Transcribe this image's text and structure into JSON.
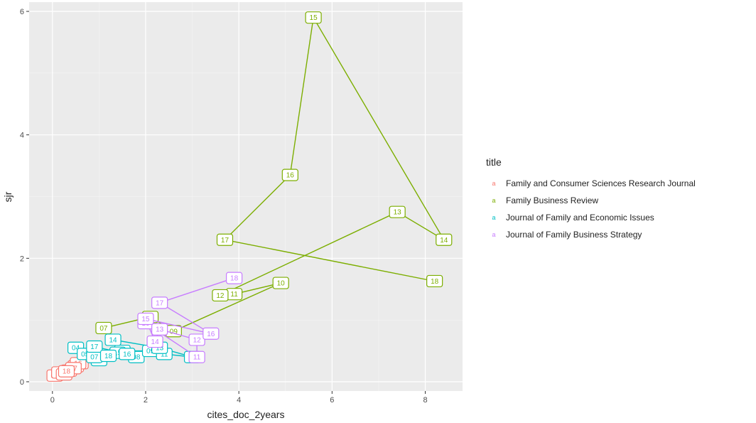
{
  "chart_data": {
    "type": "line",
    "xlabel": "cites_doc_2years",
    "ylabel": "sjr",
    "xlim": [
      -0.5,
      8.8
    ],
    "ylim": [
      -0.15,
      6.15
    ],
    "x_ticks": [
      0,
      2,
      4,
      6,
      8
    ],
    "y_ticks": [
      0,
      2,
      4,
      6
    ],
    "grid": true,
    "legend_title": "title",
    "legend_position": "right",
    "legend_key_glyph": "a",
    "series": [
      {
        "name": "Family and Consumer Sciences Research Journal",
        "color": "#F8766D",
        "points": [
          {
            "label": "09",
            "x": 0.05,
            "y": 0.1
          },
          {
            "label": "10",
            "x": 0.15,
            "y": 0.15
          },
          {
            "label": "11",
            "x": 0.25,
            "y": 0.12
          },
          {
            "label": "12",
            "x": 0.35,
            "y": 0.18
          },
          {
            "label": "13",
            "x": 0.5,
            "y": 0.25
          },
          {
            "label": "14",
            "x": 0.6,
            "y": 0.3
          },
          {
            "label": "15",
            "x": 0.45,
            "y": 0.22
          },
          {
            "label": "16",
            "x": 0.55,
            "y": 0.3
          },
          {
            "label": "17",
            "x": 0.45,
            "y": 0.22
          },
          {
            "label": "18",
            "x": 0.3,
            "y": 0.17
          }
        ]
      },
      {
        "name": "Family Business Review",
        "color": "#7CAE00",
        "points": [
          {
            "label": "07",
            "x": 1.1,
            "y": 0.87
          },
          {
            "label": "08",
            "x": 2.1,
            "y": 1.05
          },
          {
            "label": "09",
            "x": 2.6,
            "y": 0.82
          },
          {
            "label": "10",
            "x": 4.9,
            "y": 1.6
          },
          {
            "label": "11",
            "x": 3.9,
            "y": 1.42
          },
          {
            "label": "12",
            "x": 3.6,
            "y": 1.4
          },
          {
            "label": "13",
            "x": 7.4,
            "y": 2.75
          },
          {
            "label": "14",
            "x": 8.4,
            "y": 2.3
          },
          {
            "label": "15",
            "x": 5.6,
            "y": 5.9
          },
          {
            "label": "16",
            "x": 5.1,
            "y": 3.35
          },
          {
            "label": "17",
            "x": 3.7,
            "y": 2.3
          },
          {
            "label": "18",
            "x": 8.2,
            "y": 1.63
          }
        ]
      },
      {
        "name": "Journal of Family and Economic Issues",
        "color": "#00BFC4",
        "points": [
          {
            "label": "04",
            "x": 0.5,
            "y": 0.55
          },
          {
            "label": "05",
            "x": 0.7,
            "y": 0.45
          },
          {
            "label": "06",
            "x": 1.0,
            "y": 0.35
          },
          {
            "label": "07",
            "x": 0.9,
            "y": 0.4
          },
          {
            "label": "08",
            "x": 1.8,
            "y": 0.4
          },
          {
            "label": "09",
            "x": 2.1,
            "y": 0.5
          },
          {
            "label": "10",
            "x": 1.5,
            "y": 0.5
          },
          {
            "label": "11",
            "x": 2.4,
            "y": 0.45
          },
          {
            "label": "12",
            "x": 3.0,
            "y": 0.4
          },
          {
            "label": "13",
            "x": 2.3,
            "y": 0.55
          },
          {
            "label": "14",
            "x": 1.3,
            "y": 0.68
          },
          {
            "label": "15",
            "x": 1.4,
            "y": 0.47
          },
          {
            "label": "16",
            "x": 1.6,
            "y": 0.45
          },
          {
            "label": "17",
            "x": 0.9,
            "y": 0.57
          },
          {
            "label": "18",
            "x": 1.2,
            "y": 0.42
          }
        ]
      },
      {
        "name": "Journal of Family Business Strategy",
        "color": "#C77CFF",
        "points": [
          {
            "label": "10",
            "x": 2.0,
            "y": 0.95
          },
          {
            "label": "11",
            "x": 3.1,
            "y": 0.4
          },
          {
            "label": "12",
            "x": 3.1,
            "y": 0.68
          },
          {
            "label": "13",
            "x": 2.3,
            "y": 0.85
          },
          {
            "label": "14",
            "x": 2.2,
            "y": 0.65
          },
          {
            "label": "15",
            "x": 2.0,
            "y": 1.02
          },
          {
            "label": "16",
            "x": 3.4,
            "y": 0.78
          },
          {
            "label": "17",
            "x": 2.3,
            "y": 1.28
          },
          {
            "label": "18",
            "x": 3.9,
            "y": 1.68
          }
        ]
      }
    ]
  }
}
